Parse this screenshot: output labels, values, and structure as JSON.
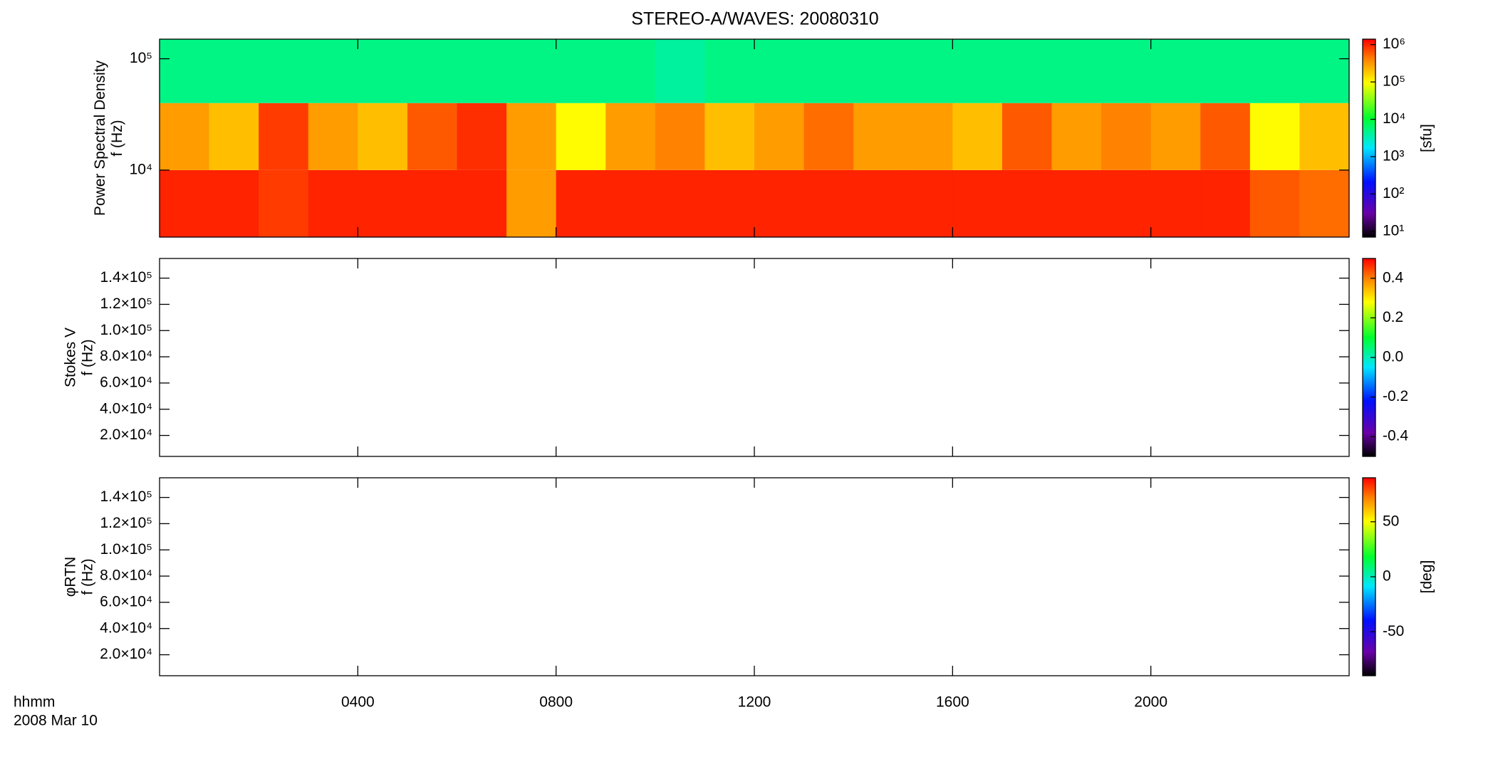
{
  "title": "STEREO-A/WAVES: 20080310",
  "time_label": "hhmm",
  "date_label": "2008 Mar 10",
  "chart_data": [
    {
      "type": "heatmap",
      "y_label": [
        "Power Spectral Density",
        "f (Hz)"
      ],
      "xlim": [
        0,
        24
      ],
      "xticks": [
        {
          "value": 4,
          "label": "0400"
        },
        {
          "value": 8,
          "label": "0800"
        },
        {
          "value": 12,
          "label": "1200"
        },
        {
          "value": 16,
          "label": "1600"
        },
        {
          "value": 20,
          "label": "2000"
        }
      ],
      "ylim": [
        2500,
        150000
      ],
      "yscale": "log",
      "yticks": [
        {
          "value": 10000,
          "label": "10⁴"
        },
        {
          "value": 100000,
          "label": "10⁵"
        }
      ],
      "colorbar": {
        "label": "[sfu]",
        "lim": [
          7,
          1400000
        ],
        "scale": "log",
        "ticks": [
          {
            "value": 10,
            "label": "10¹"
          },
          {
            "value": 100,
            "label": "10²"
          },
          {
            "value": 1000,
            "label": "10³"
          },
          {
            "value": 10000,
            "label": "10⁴"
          },
          {
            "value": 100000,
            "label": "10⁵"
          },
          {
            "value": 1000000,
            "label": "10⁶"
          }
        ]
      },
      "xbins": [
        0,
        1,
        2,
        3,
        4,
        5,
        6,
        7,
        8,
        9,
        10,
        11,
        12,
        13,
        14,
        15,
        16,
        17,
        18,
        19,
        20,
        21,
        22,
        23,
        24
      ],
      "ybins": [
        2500,
        10000,
        40000,
        150000
      ],
      "values": [
        [
          1000000,
          1000000,
          800000,
          1000000,
          1000000,
          1000000,
          1000000,
          300000,
          1000000,
          1000000,
          1000000,
          1000000,
          1000000,
          1000000,
          1000000,
          1000000,
          1000000,
          1000000,
          1000000,
          1000000,
          1000000,
          1000000,
          600000,
          500000
        ],
        [
          300000,
          200000,
          800000,
          300000,
          200000,
          600000,
          900000,
          300000,
          100000,
          300000,
          400000,
          200000,
          300000,
          500000,
          300000,
          300000,
          200000,
          600000,
          300000,
          400000,
          300000,
          600000,
          100000,
          200000
        ],
        [
          5000,
          5000,
          5000,
          5000,
          5000,
          5000,
          5000,
          5000,
          5000,
          5000,
          4000,
          5000,
          5000,
          5000,
          5000,
          5000,
          5000,
          5000,
          5000,
          5000,
          5000,
          5000,
          5000,
          5000
        ]
      ]
    },
    {
      "type": "heatmap",
      "y_label": [
        "Stokes V",
        "f (Hz)"
      ],
      "xlim": [
        0,
        24
      ],
      "xticks": [
        {
          "value": 4,
          "label": "0400"
        },
        {
          "value": 8,
          "label": "0800"
        },
        {
          "value": 12,
          "label": "1200"
        },
        {
          "value": 16,
          "label": "1600"
        },
        {
          "value": 20,
          "label": "2000"
        }
      ],
      "ylim": [
        4000,
        155000
      ],
      "yscale": "linear",
      "yticks": [
        {
          "value": 20000,
          "label": "2.0×10⁴"
        },
        {
          "value": 40000,
          "label": "4.0×10⁴"
        },
        {
          "value": 60000,
          "label": "6.0×10⁴"
        },
        {
          "value": 80000,
          "label": "8.0×10⁴"
        },
        {
          "value": 100000,
          "label": "1.0×10⁵"
        },
        {
          "value": 120000,
          "label": "1.2×10⁵"
        },
        {
          "value": 140000,
          "label": "1.4×10⁵"
        }
      ],
      "colorbar": {
        "lim": [
          -0.5,
          0.5
        ],
        "scale": "linear",
        "ticks": [
          -0.4,
          -0.2,
          {
            "value": 0,
            "label": "0.0"
          },
          0.2,
          0.4
        ]
      }
    },
    {
      "type": "heatmap",
      "y_label": [
        "φRTN",
        "f (Hz)"
      ],
      "xlim": [
        0,
        24
      ],
      "xticks": [
        {
          "value": 4,
          "label": "0400"
        },
        {
          "value": 8,
          "label": "0800"
        },
        {
          "value": 12,
          "label": "1200"
        },
        {
          "value": 16,
          "label": "1600"
        },
        {
          "value": 20,
          "label": "2000"
        }
      ],
      "ylim": [
        4000,
        155000
      ],
      "yscale": "linear",
      "yticks": [
        {
          "value": 20000,
          "label": "2.0×10⁴"
        },
        {
          "value": 40000,
          "label": "4.0×10⁴"
        },
        {
          "value": 60000,
          "label": "6.0×10⁴"
        },
        {
          "value": 80000,
          "label": "8.0×10⁴"
        },
        {
          "value": 100000,
          "label": "1.0×10⁵"
        },
        {
          "value": 120000,
          "label": "1.2×10⁵"
        },
        {
          "value": 140000,
          "label": "1.4×10⁵"
        }
      ],
      "colorbar": {
        "label": "[deg]",
        "lim": [
          -90,
          90
        ],
        "scale": "linear",
        "ticks": [
          -50,
          0,
          50
        ]
      }
    }
  ]
}
